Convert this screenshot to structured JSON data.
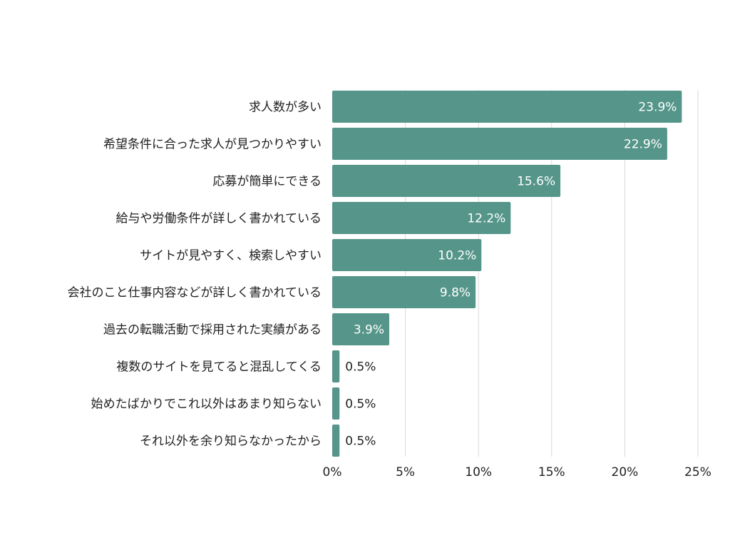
{
  "chart_data": {
    "type": "bar",
    "orientation": "horizontal",
    "categories": [
      "求人数が多い",
      "希望条件に合った求人が見つかりやすい",
      "応募が簡単にできる",
      "給与や労働条件が詳しく書かれている",
      "サイトが見やすく、検索しやすい",
      "会社のこと仕事内容などが詳しく書かれている",
      "過去の転職活動で採用された実績がある",
      "複数のサイトを見てると混乱してくる",
      "始めたばかりでこれ以外はあまり知らない",
      "それ以外を余り知らなかったから"
    ],
    "values": [
      23.9,
      22.9,
      15.6,
      12.2,
      10.2,
      9.8,
      3.9,
      0.5,
      0.5,
      0.5
    ],
    "value_labels": [
      "23.9%",
      "22.9%",
      "15.6%",
      "12.2%",
      "10.2%",
      "9.8%",
      "3.9%",
      "0.5%",
      "0.5%",
      "0.5%"
    ],
    "xlim": [
      0,
      25
    ],
    "x_ticks": [
      0,
      5,
      10,
      15,
      20,
      25
    ],
    "x_tick_labels": [
      "0%",
      "5%",
      "10%",
      "15%",
      "20%",
      "25%"
    ],
    "grid": "vertical",
    "title": "",
    "xlabel": "",
    "ylabel": "",
    "colors": {
      "bar": "#56968a",
      "grid": "#d9d9d9",
      "label_inside": "#ffffff",
      "label_outside": "#222222"
    }
  }
}
